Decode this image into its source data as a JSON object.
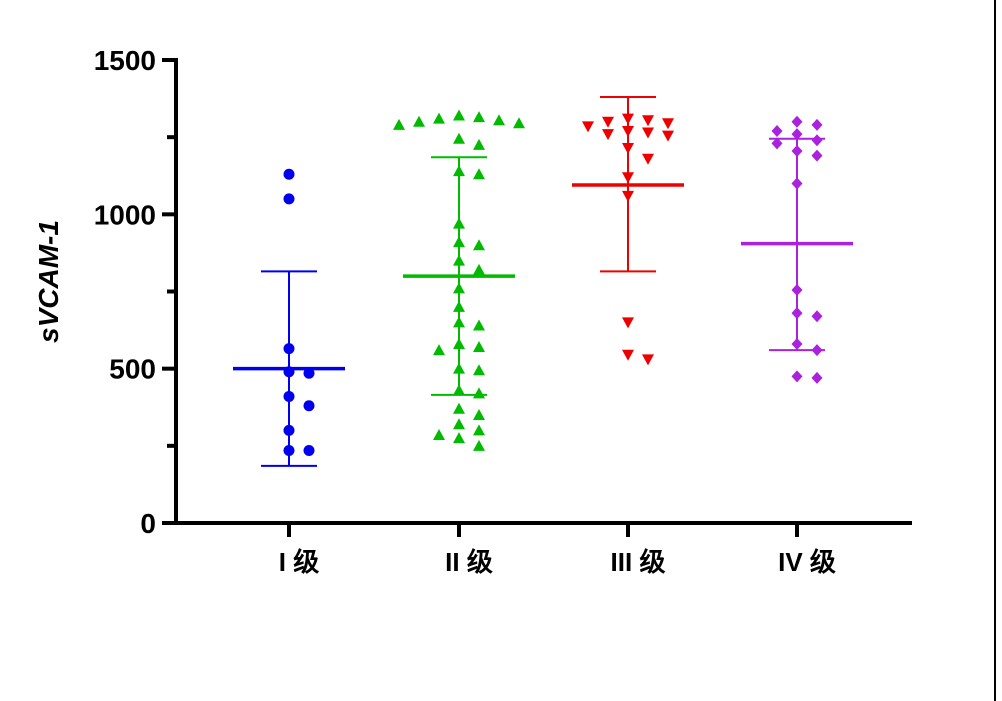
{
  "chart_data": {
    "type": "scatter",
    "ylabel": "sVCAM-1",
    "xlabel": "",
    "ylim": [
      0,
      1500
    ],
    "yticks": [
      0,
      500,
      1000,
      1500
    ],
    "grid": false,
    "series": [
      {
        "category": "I 级",
        "color": "#0000ee",
        "marker": "circle",
        "mean": 500,
        "sd_low": 185,
        "sd_high": 815,
        "values": [
          1130,
          1050,
          565,
          490,
          485,
          410,
          380,
          300,
          235,
          235
        ]
      },
      {
        "category": "II 级",
        "color": "#00bb00",
        "marker": "triangle-up",
        "mean": 800,
        "sd_low": 415,
        "sd_high": 1185,
        "values": [
          1320,
          1315,
          1310,
          1305,
          1300,
          1295,
          1290,
          1245,
          1225,
          1140,
          1130,
          970,
          910,
          900,
          850,
          820,
          760,
          700,
          650,
          640,
          580,
          570,
          560,
          500,
          495,
          430,
          420,
          370,
          350,
          320,
          300,
          285,
          275,
          250
        ]
      },
      {
        "category": "III 级",
        "color": "#ee0000",
        "marker": "triangle-down",
        "mean": 1095,
        "sd_low": 815,
        "sd_high": 1380,
        "values": [
          1310,
          1305,
          1300,
          1295,
          1285,
          1270,
          1265,
          1260,
          1255,
          1215,
          1180,
          1120,
          1060,
          650,
          545,
          530
        ]
      },
      {
        "category": "IV 级",
        "color": "#aa22dd",
        "marker": "diamond",
        "mean": 905,
        "sd_low": 560,
        "sd_high": 1245,
        "values": [
          1300,
          1290,
          1270,
          1260,
          1240,
          1230,
          1205,
          1190,
          1100,
          755,
          680,
          670,
          580,
          560,
          475,
          470
        ]
      }
    ]
  }
}
